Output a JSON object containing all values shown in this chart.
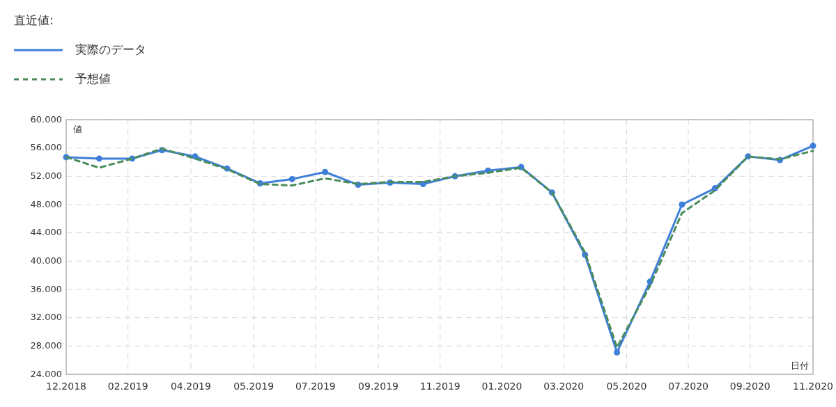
{
  "chart_data": {
    "type": "line",
    "legend_title": "直近値:",
    "ylabel": "値",
    "xlabel": "日付",
    "legend": "top left",
    "grid": true,
    "x": [
      "2018-12-01",
      "2019-01-01",
      "2019-02-01",
      "2019-03-01",
      "2019-04-01",
      "2019-05-01",
      "2019-06-01",
      "2019-07-01",
      "2019-08-01",
      "2019-09-01",
      "2019-10-01",
      "2019-11-01",
      "2019-12-01",
      "2020-01-01",
      "2020-02-01",
      "2020-03-01",
      "2020-04-01",
      "2020-05-01",
      "2020-06-01",
      "2020-07-01",
      "2020-08-01",
      "2020-09-01",
      "2020-10-01",
      "2020-11-01"
    ],
    "series": [
      {
        "name": "実際のデータ",
        "color": "#3f7fd9",
        "marker": "circle",
        "line_style": "solid",
        "values": [
          54700,
          54500,
          54500,
          55700,
          54800,
          53100,
          51000,
          51600,
          52600,
          50800,
          51100,
          50900,
          52000,
          52800,
          53300,
          49700,
          40900,
          27100,
          37100,
          48000,
          50300,
          54800,
          54300,
          56300
        ]
      },
      {
        "name": "予想値",
        "color": "#4a8c5a",
        "marker": "none",
        "line_style": "dashed",
        "values": [
          54700,
          53200,
          54500,
          55900,
          54500,
          53000,
          50900,
          50700,
          51700,
          50900,
          51200,
          51200,
          52000,
          52500,
          53200,
          49700,
          41200,
          27800,
          36500,
          46800,
          50000,
          54800,
          54400,
          55600
        ]
      }
    ],
    "xlim": [
      "2018-12-01",
      "2020-11-01"
    ],
    "xticks": [
      {
        "value": "2018-12-01",
        "label": "12.2018"
      },
      {
        "value": "2019-01-28",
        "label": "02.2019"
      },
      {
        "value": "2019-03-28",
        "label": "04.2019"
      },
      {
        "value": "2019-05-26",
        "label": "05.2019"
      },
      {
        "value": "2019-07-23",
        "label": "07.2019"
      },
      {
        "value": "2019-09-20",
        "label": "09.2019"
      },
      {
        "value": "2019-11-17",
        "label": "11.2019"
      },
      {
        "value": "2020-01-14",
        "label": "01.2020"
      },
      {
        "value": "2020-03-12",
        "label": "03.2020"
      },
      {
        "value": "2020-05-10",
        "label": "05.2020"
      },
      {
        "value": "2020-07-07",
        "label": "07.2020"
      },
      {
        "value": "2020-09-03",
        "label": "09.2020"
      },
      {
        "value": "2020-11-01",
        "label": "11.2020"
      }
    ],
    "ylim": [
      24000,
      60000
    ],
    "yticks": [
      {
        "value": 24000,
        "label": "24.000"
      },
      {
        "value": 28000,
        "label": "28.000"
      },
      {
        "value": 32000,
        "label": "32.000"
      },
      {
        "value": 36000,
        "label": "36.000"
      },
      {
        "value": 40000,
        "label": "40.000"
      },
      {
        "value": 44000,
        "label": "44.000"
      },
      {
        "value": 48000,
        "label": "48.000"
      },
      {
        "value": 52000,
        "label": "52.000"
      },
      {
        "value": 56000,
        "label": "56.000"
      },
      {
        "value": 60000,
        "label": "60.000"
      }
    ]
  }
}
